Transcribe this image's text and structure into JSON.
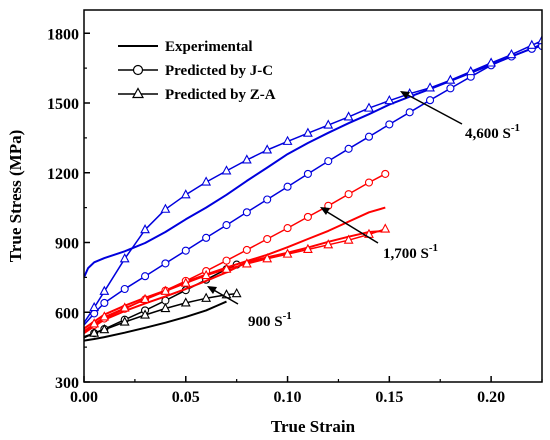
{
  "chart_data": {
    "type": "line",
    "xlabel": "True Strain",
    "ylabel": "True Stress (MPa)",
    "xlim": [
      0,
      0.225
    ],
    "ylim": [
      300,
      1900
    ],
    "x_ticks": [
      0.0,
      0.05,
      0.1,
      0.15,
      0.2
    ],
    "x_tick_labels": [
      "0.00",
      "0.05",
      "0.10",
      "0.15",
      "0.20"
    ],
    "y_ticks": [
      300,
      600,
      900,
      1200,
      1500,
      1800
    ],
    "y_tick_labels": [
      "300",
      "600",
      "900",
      "1200",
      "1500",
      "1800"
    ],
    "grid": false,
    "legend": {
      "placement": "top-left",
      "entries": [
        {
          "label": "Experimental",
          "marker": "none"
        },
        {
          "label": "Predicted by J-C",
          "marker": "circle"
        },
        {
          "label": "Predicted by Z-A",
          "marker": "triangle"
        }
      ]
    },
    "annotations": [
      {
        "base": "4,600 S",
        "sup": "-1",
        "arrow_to": [
          0.148,
          1510
        ]
      },
      {
        "base": "1,700 S",
        "sup": "-1",
        "arrow_to": [
          0.122,
          1005
        ]
      },
      {
        "base": "900 S",
        "sup": "-1",
        "arrow_to": [
          0.066,
          675
        ]
      }
    ],
    "series": [
      {
        "group": "900",
        "kind": "Experimental",
        "color": "#000000",
        "marker": "none",
        "x": [
          0.0,
          0.005,
          0.01,
          0.02,
          0.03,
          0.04,
          0.05,
          0.06,
          0.065,
          0.07
        ],
        "y": [
          478,
          485,
          493,
          512,
          533,
          555,
          580,
          608,
          627,
          646
        ]
      },
      {
        "group": "900",
        "kind": "Predicted by J-C",
        "color": "#000000",
        "marker": "circle",
        "x": [
          0.0,
          0.005,
          0.01,
          0.02,
          0.03,
          0.04,
          0.05,
          0.06,
          0.07,
          0.075
        ],
        "y": [
          490,
          510,
          528,
          568,
          608,
          650,
          695,
          740,
          785,
          805
        ]
      },
      {
        "group": "900",
        "kind": "Predicted by Z-A",
        "color": "#000000",
        "marker": "triangle",
        "x": [
          0.0,
          0.005,
          0.01,
          0.02,
          0.03,
          0.04,
          0.05,
          0.06,
          0.07,
          0.075
        ],
        "y": [
          495,
          510,
          525,
          558,
          588,
          616,
          640,
          660,
          675,
          680
        ]
      },
      {
        "group": "1700",
        "kind": "Experimental",
        "color": "#ff0000",
        "marker": "none",
        "x": [
          0.0,
          0.005,
          0.01,
          0.02,
          0.03,
          0.04,
          0.05,
          0.06,
          0.07,
          0.08,
          0.09,
          0.1,
          0.11,
          0.12,
          0.13,
          0.14,
          0.148
        ],
        "y": [
          530,
          560,
          590,
          628,
          662,
          693,
          730,
          762,
          792,
          820,
          847,
          880,
          915,
          950,
          990,
          1030,
          1050
        ]
      },
      {
        "group": "1700",
        "kind": "Experimental",
        "color": "#ff0000",
        "marker": "none",
        "x": [
          0.0,
          0.005,
          0.01,
          0.02,
          0.03,
          0.04,
          0.05,
          0.06,
          0.07,
          0.08,
          0.09,
          0.1,
          0.11,
          0.12,
          0.13,
          0.14,
          0.148
        ],
        "y": [
          510,
          540,
          568,
          605,
          638,
          668,
          700,
          735,
          772,
          815,
          836,
          856,
          878,
          903,
          925,
          945,
          950
        ]
      },
      {
        "group": "1700",
        "kind": "Predicted by J-C",
        "color": "#ff0000",
        "marker": "circle",
        "x": [
          0.0,
          0.005,
          0.01,
          0.02,
          0.03,
          0.04,
          0.05,
          0.06,
          0.07,
          0.08,
          0.09,
          0.1,
          0.11,
          0.12,
          0.13,
          0.14,
          0.148
        ],
        "y": [
          515,
          545,
          573,
          615,
          655,
          693,
          735,
          777,
          822,
          868,
          915,
          962,
          1010,
          1058,
          1108,
          1158,
          1195
        ]
      },
      {
        "group": "1700",
        "kind": "Predicted by Z-A",
        "color": "#ff0000",
        "marker": "triangle",
        "x": [
          0.0,
          0.005,
          0.01,
          0.02,
          0.03,
          0.04,
          0.05,
          0.06,
          0.07,
          0.08,
          0.09,
          0.1,
          0.11,
          0.12,
          0.13,
          0.14,
          0.148
        ],
        "y": [
          520,
          550,
          580,
          618,
          655,
          690,
          725,
          758,
          785,
          808,
          830,
          850,
          870,
          890,
          910,
          935,
          958
        ]
      },
      {
        "group": "4600",
        "kind": "Experimental",
        "color": "#0000dd",
        "marker": "none",
        "x": [
          0.0,
          0.002,
          0.005,
          0.01,
          0.02,
          0.03,
          0.04,
          0.05,
          0.06,
          0.07,
          0.08,
          0.09,
          0.1,
          0.11,
          0.12,
          0.13,
          0.14,
          0.15,
          0.16,
          0.17,
          0.18,
          0.19,
          0.2,
          0.21,
          0.22,
          0.225
        ],
        "y": [
          750,
          790,
          815,
          833,
          862,
          898,
          945,
          1000,
          1050,
          1105,
          1165,
          1222,
          1280,
          1328,
          1372,
          1413,
          1452,
          1493,
          1527,
          1560,
          1595,
          1630,
          1665,
          1700,
          1735,
          1752
        ]
      },
      {
        "group": "4600",
        "kind": "Predicted by J-C",
        "color": "#0000dd",
        "marker": "circle",
        "x": [
          0.0,
          0.005,
          0.01,
          0.02,
          0.03,
          0.04,
          0.05,
          0.06,
          0.07,
          0.08,
          0.09,
          0.1,
          0.11,
          0.12,
          0.13,
          0.14,
          0.15,
          0.16,
          0.17,
          0.18,
          0.19,
          0.2,
          0.21,
          0.22,
          0.225
        ],
        "y": [
          545,
          595,
          640,
          700,
          755,
          810,
          865,
          920,
          975,
          1030,
          1085,
          1140,
          1195,
          1250,
          1303,
          1355,
          1408,
          1460,
          1512,
          1563,
          1613,
          1662,
          1700,
          1733,
          1745
        ]
      },
      {
        "group": "4600",
        "kind": "Predicted by Z-A",
        "color": "#0000dd",
        "marker": "triangle",
        "x": [
          0.0,
          0.005,
          0.01,
          0.02,
          0.03,
          0.04,
          0.05,
          0.06,
          0.07,
          0.08,
          0.09,
          0.1,
          0.11,
          0.12,
          0.13,
          0.14,
          0.15,
          0.16,
          0.17,
          0.18,
          0.19,
          0.2,
          0.21,
          0.22,
          0.225
        ],
        "y": [
          555,
          620,
          690,
          830,
          955,
          1043,
          1105,
          1160,
          1208,
          1255,
          1298,
          1335,
          1370,
          1405,
          1440,
          1478,
          1510,
          1540,
          1565,
          1598,
          1635,
          1672,
          1708,
          1748,
          1768
        ]
      }
    ]
  }
}
